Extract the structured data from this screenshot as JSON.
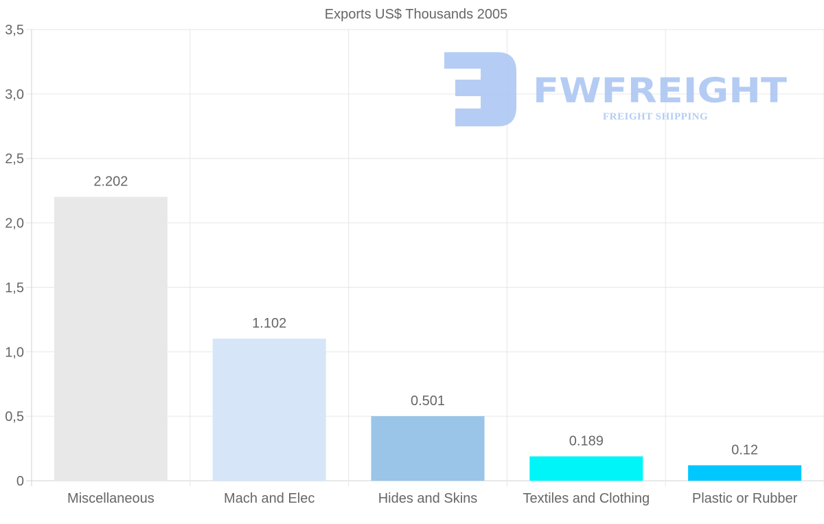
{
  "chart_data": {
    "type": "bar",
    "title": "Exports US$ Thousands 2005",
    "xlabel": "",
    "ylabel": "",
    "ylim": [
      0,
      3.5
    ],
    "yticks": [
      0,
      0.5,
      1.0,
      1.5,
      2.0,
      2.5,
      3.0,
      3.5
    ],
    "ytick_labels": [
      "0",
      "0,5",
      "1,0",
      "1,5",
      "2,0",
      "2,5",
      "3,0",
      "3,5"
    ],
    "grid": true,
    "legend": "none",
    "categories": [
      "Miscellaneous",
      "Mach and Elec",
      "Hides and Skins",
      "Textiles and Clothing",
      "Plastic or Rubber"
    ],
    "values": [
      2.202,
      1.102,
      0.501,
      0.189,
      0.12
    ],
    "value_labels": [
      "2.202",
      "1.102",
      "0.501",
      "0.189",
      "0.12"
    ],
    "bar_colors": [
      "#e8e8e8",
      "#d6e6f8",
      "#9ac4e8",
      "#00f5f8",
      "#00c8ff"
    ]
  },
  "watermark": {
    "brand": "FWFREIGHT",
    "tagline": "FREIGHT SHIPPING",
    "color": "#a8c4f2"
  }
}
